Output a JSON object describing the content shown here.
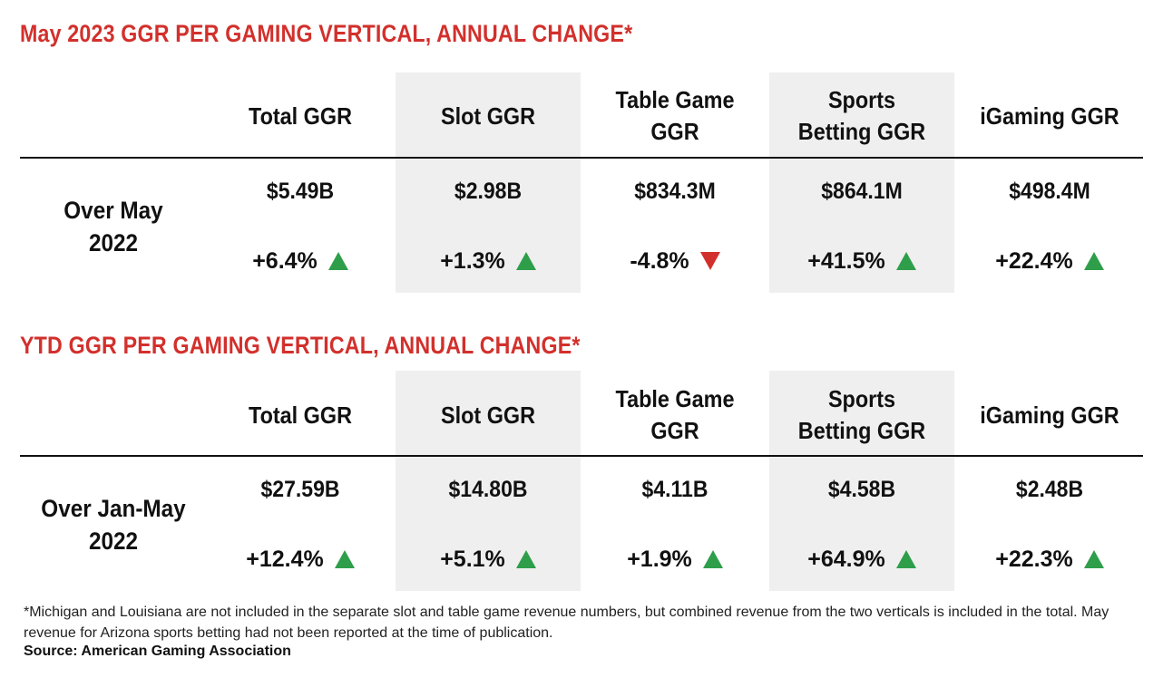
{
  "chart_data": [
    {
      "type": "table",
      "title": "May 2023 GGR PER GAMING VERTICAL, ANNUAL CHANGE*",
      "columns": [
        "Total GGR",
        "Slot GGR",
        "Table Game GGR",
        "Sports Betting GGR",
        "iGaming GGR"
      ],
      "column_lines": [
        [
          "Total GGR"
        ],
        [
          "Slot GGR"
        ],
        [
          "Table Game",
          "GGR"
        ],
        [
          "Sports",
          "Betting GGR"
        ],
        [
          "iGaming GGR"
        ]
      ],
      "row_label_lines": [
        "Over May",
        "2022"
      ],
      "values": [
        "$5.49B",
        "$2.98B",
        "$834.3M",
        "$864.1M",
        "$498.4M"
      ],
      "changes": [
        "+6.4%",
        "+1.3%",
        "-4.8%",
        "+41.5%",
        "+22.4%"
      ],
      "directions": [
        "up",
        "up",
        "down",
        "up",
        "up"
      ]
    },
    {
      "type": "table",
      "title": "YTD GGR PER GAMING VERTICAL, ANNUAL CHANGE*",
      "columns": [
        "Total GGR",
        "Slot GGR",
        "Table Game GGR",
        "Sports Betting GGR",
        "iGaming GGR"
      ],
      "column_lines": [
        [
          "Total GGR"
        ],
        [
          "Slot GGR"
        ],
        [
          "Table Game",
          "GGR"
        ],
        [
          "Sports",
          "Betting GGR"
        ],
        [
          "iGaming GGR"
        ]
      ],
      "row_label_lines": [
        "Over Jan-May",
        "2022"
      ],
      "values": [
        "$27.59B",
        "$14.80B",
        "$4.11B",
        "$4.58B",
        "$2.48B"
      ],
      "changes": [
        "+12.4%",
        "+5.1%",
        "+1.9%",
        "+64.9%",
        "+22.3%"
      ],
      "directions": [
        "up",
        "up",
        "up",
        "up",
        "up"
      ]
    }
  ],
  "footnote": "*Michigan and Louisiana are not included in the separate slot and table game revenue numbers, but combined revenue from the two verticals is included in the total. May revenue for Arizona sports betting had not been reported at the time of publication.",
  "source": "Source: American Gaming Association",
  "colors": {
    "title": "#d2302c",
    "up_arrow": "#2e9e4a",
    "down_arrow": "#d2302c",
    "shaded_column": "#efefef"
  }
}
